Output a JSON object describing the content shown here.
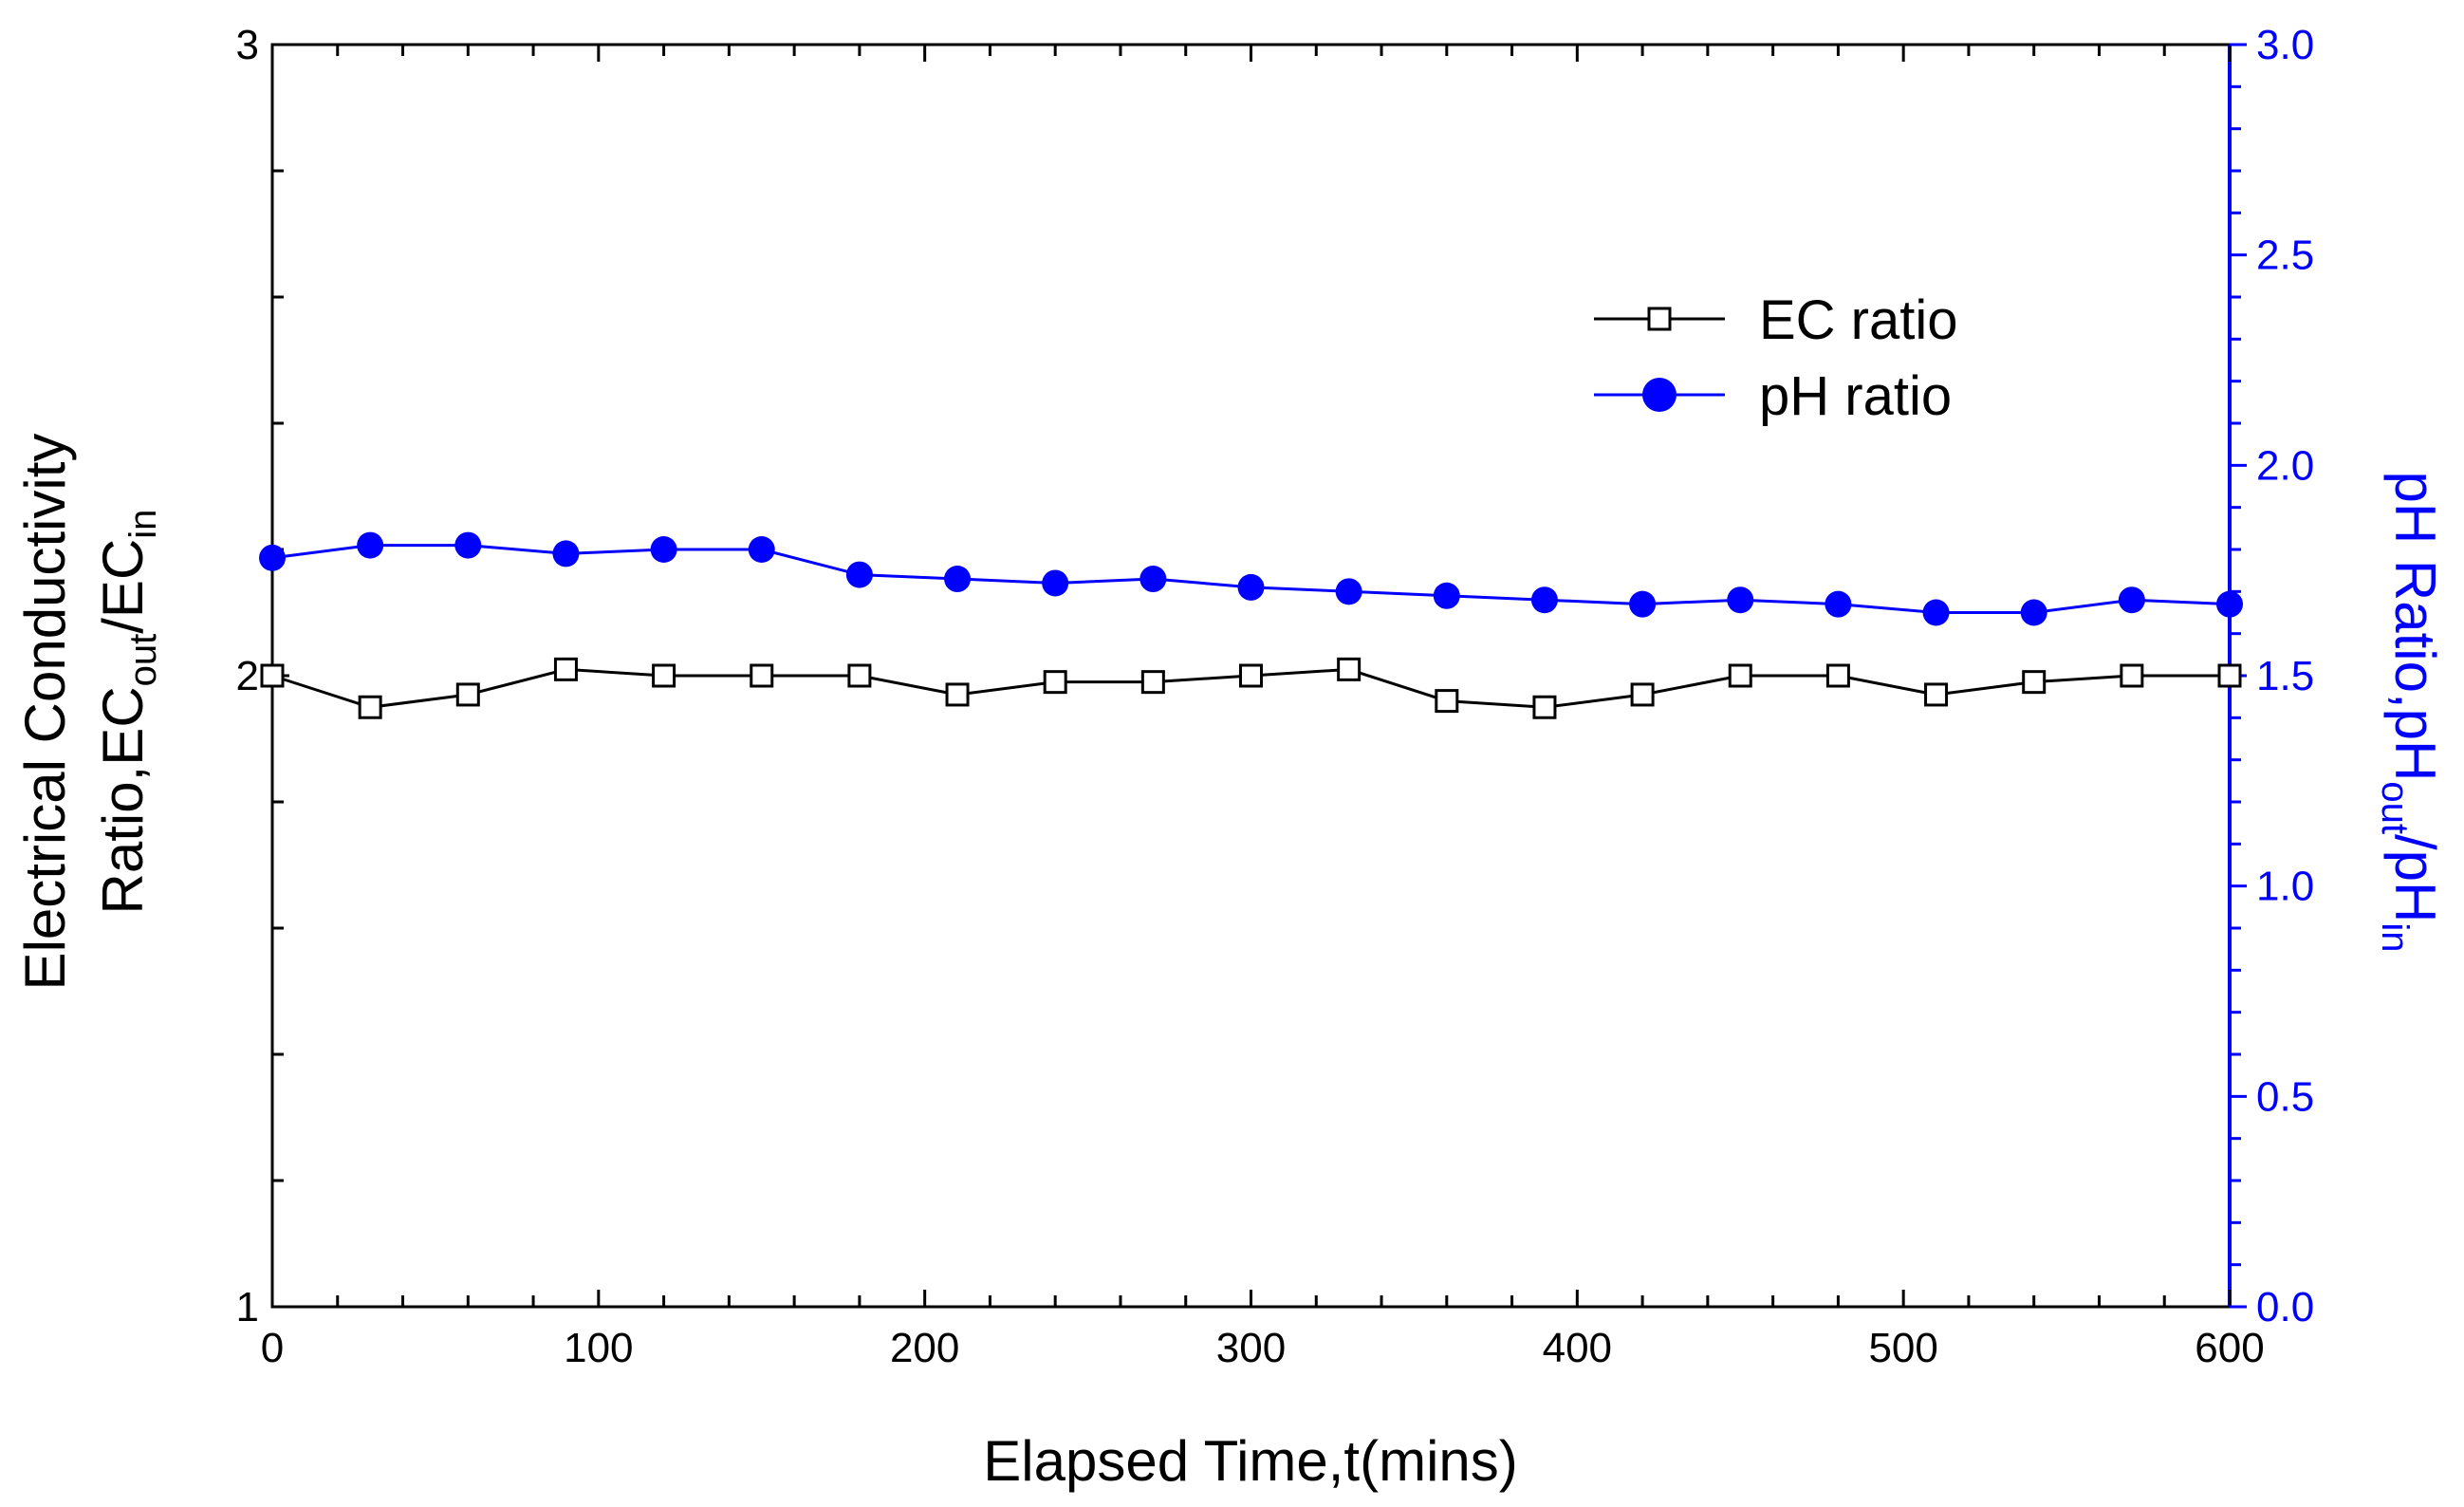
{
  "chart_data": {
    "type": "line",
    "x": [
      0,
      30,
      60,
      90,
      120,
      150,
      180,
      210,
      240,
      270,
      300,
      330,
      360,
      390,
      420,
      450,
      480,
      510,
      540,
      570,
      600
    ],
    "series": [
      {
        "name": "EC ratio",
        "axis": "left",
        "color": "#000000",
        "marker": "open-square",
        "values": [
          2.0,
          1.95,
          1.97,
          2.01,
          2.0,
          2.0,
          2.0,
          1.97,
          1.99,
          1.99,
          2.0,
          2.01,
          1.96,
          1.95,
          1.97,
          2.0,
          2.0,
          1.97,
          1.99,
          2.0,
          2.0
        ]
      },
      {
        "name": "pH ratio",
        "axis": "right",
        "color": "#0000ff",
        "marker": "filled-circle",
        "values": [
          1.78,
          1.81,
          1.81,
          1.79,
          1.8,
          1.8,
          1.74,
          1.73,
          1.72,
          1.73,
          1.71,
          1.7,
          1.69,
          1.68,
          1.67,
          1.68,
          1.67,
          1.65,
          1.65,
          1.68,
          1.67
        ]
      }
    ],
    "xlabel": "Elapsed Time,t(mins)",
    "xlim": [
      0,
      600
    ],
    "xticks": [
      "0",
      "100",
      "200",
      "300",
      "400",
      "500",
      "600"
    ],
    "xtick_values": [
      0,
      100,
      200,
      300,
      400,
      500,
      600
    ],
    "x_minor_step": 20,
    "ylabel_left": {
      "line1": "Electrical Conductivity",
      "line2_prefix": "Ratio,EC",
      "line2_sub1": "out",
      "line2_mid": "/EC",
      "line2_sub2": "in"
    },
    "ylim_left": [
      1,
      3
    ],
    "yticks_left": [
      "1",
      "2",
      "3"
    ],
    "ytick_values_left": [
      1,
      2,
      3
    ],
    "y_minor_step_left": 0.2,
    "ylabel_right": {
      "prefix": "pH Ratio,pH",
      "sub1": "out",
      "mid": "/pH",
      "sub2": "in"
    },
    "ylim_right": [
      0,
      3
    ],
    "yticks_right": [
      "0.0",
      "0.5",
      "1.0",
      "1.5",
      "2.0",
      "2.5",
      "3.0"
    ],
    "ytick_values_right": [
      0,
      0.5,
      1.0,
      1.5,
      2.0,
      2.5,
      3.0
    ],
    "y_minor_step_right": 0.1,
    "legend_position": "top-right",
    "grid": false
  }
}
